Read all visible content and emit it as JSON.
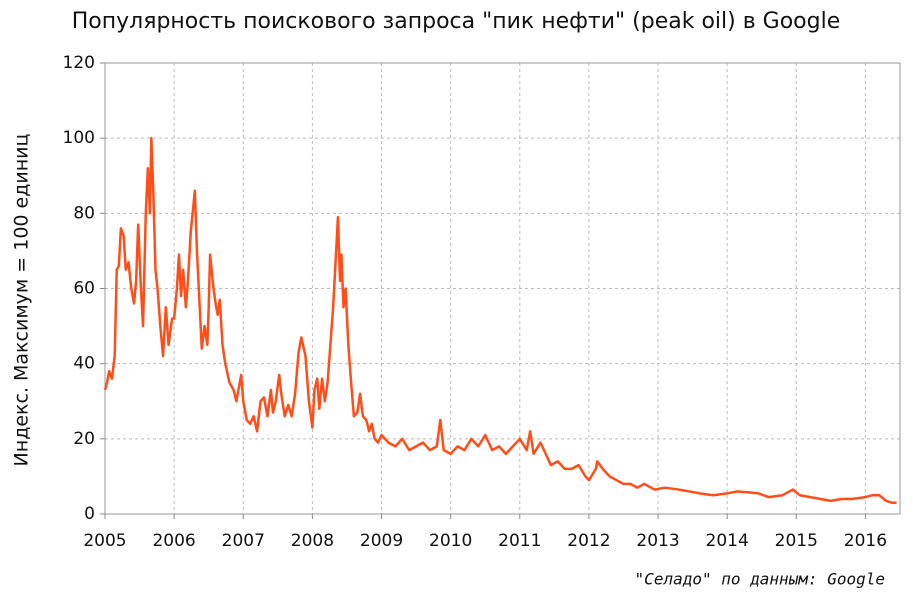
{
  "chart_data": {
    "type": "line",
    "title": "Популярность поискового запроса \"пик нефти\" (peak oil) в Google",
    "y_label": "Индекс. Максимум = 100 единиц",
    "source": "\"Селадо\" по данным: Google",
    "xlim": [
      2005,
      2016.5
    ],
    "xticks": [
      2005,
      2006,
      2007,
      2008,
      2009,
      2010,
      2011,
      2012,
      2013,
      2014,
      2015,
      2016
    ],
    "ylim": [
      0,
      120
    ],
    "yticks": [
      0,
      20,
      40,
      60,
      80,
      100,
      120
    ],
    "grid": true,
    "color": "#ff4e1a",
    "x": [
      2005.0,
      2005.03,
      2005.06,
      2005.1,
      2005.14,
      2005.17,
      2005.2,
      2005.23,
      2005.27,
      2005.3,
      2005.34,
      2005.38,
      2005.42,
      2005.45,
      2005.48,
      2005.52,
      2005.55,
      2005.59,
      2005.62,
      2005.65,
      2005.67,
      2005.7,
      2005.73,
      2005.76,
      2005.8,
      2005.84,
      2005.88,
      2005.92,
      2005.97,
      2006.0,
      2006.04,
      2006.07,
      2006.1,
      2006.13,
      2006.17,
      2006.2,
      2006.24,
      2006.3,
      2006.33,
      2006.37,
      2006.4,
      2006.44,
      2006.48,
      2006.5,
      2006.52,
      2006.57,
      2006.6,
      2006.63,
      2006.66,
      2006.7,
      2006.74,
      2006.8,
      2006.86,
      2006.9,
      2006.97,
      2007.0,
      2007.05,
      2007.1,
      2007.15,
      2007.2,
      2007.25,
      2007.3,
      2007.35,
      2007.4,
      2007.43,
      2007.47,
      2007.52,
      2007.55,
      2007.6,
      2007.65,
      2007.7,
      2007.75,
      2007.8,
      2007.84,
      2007.9,
      2007.95,
      2008.0,
      2008.03,
      2008.07,
      2008.1,
      2008.14,
      2008.18,
      2008.22,
      2008.26,
      2008.3,
      2008.37,
      2008.4,
      2008.42,
      2008.45,
      2008.48,
      2008.52,
      2008.56,
      2008.6,
      2008.65,
      2008.69,
      2008.73,
      2008.78,
      2008.82,
      2008.86,
      2008.9,
      2008.95,
      2009.0,
      2009.1,
      2009.2,
      2009.3,
      2009.4,
      2009.5,
      2009.6,
      2009.7,
      2009.8,
      2009.85,
      2009.9,
      2010.0,
      2010.1,
      2010.2,
      2010.3,
      2010.4,
      2010.5,
      2010.6,
      2010.7,
      2010.8,
      2010.9,
      2011.0,
      2011.1,
      2011.15,
      2011.2,
      2011.3,
      2011.4,
      2011.45,
      2011.55,
      2011.65,
      2011.75,
      2011.85,
      2011.95,
      2012.0,
      2012.1,
      2012.12,
      2012.2,
      2012.3,
      2012.4,
      2012.5,
      2012.6,
      2012.7,
      2012.8,
      2012.9,
      2012.95,
      2013.1,
      2013.3,
      2013.45,
      2013.6,
      2013.8,
      2014.0,
      2014.15,
      2014.3,
      2014.45,
      2014.6,
      2014.8,
      2014.95,
      2015.05,
      2015.2,
      2015.35,
      2015.5,
      2015.65,
      2015.8,
      2016.0,
      2016.1,
      2016.2,
      2016.3,
      2016.38,
      2016.45
    ],
    "values": [
      33,
      35,
      38,
      36,
      42,
      65,
      66,
      76,
      74,
      65,
      67,
      60,
      56,
      62,
      77,
      60,
      50,
      80,
      92,
      80,
      100,
      85,
      65,
      60,
      50,
      42,
      55,
      45,
      52,
      52,
      60,
      69,
      58,
      65,
      55,
      62,
      75,
      86,
      70,
      55,
      44,
      50,
      45,
      55,
      69,
      60,
      56,
      53,
      57,
      45,
      40,
      35,
      33,
      30,
      37,
      30,
      25,
      24,
      26,
      22,
      30,
      31,
      26,
      33,
      27,
      30,
      37,
      32,
      26,
      29,
      26,
      32,
      43,
      47,
      42,
      30,
      23,
      33,
      36,
      28,
      36,
      30,
      35,
      45,
      55,
      79,
      62,
      69,
      55,
      60,
      45,
      35,
      26,
      27,
      32,
      26,
      25,
      22,
      24,
      20,
      19,
      21,
      19,
      18,
      20,
      17,
      18,
      19,
      17,
      18,
      25,
      17,
      16,
      18,
      17,
      20,
      18,
      21,
      17,
      18,
      16,
      18,
      20,
      17,
      22,
      16,
      19,
      15,
      13,
      14,
      12,
      12,
      13,
      10,
      9,
      12,
      14,
      12,
      10,
      9,
      8,
      8,
      7,
      8,
      7,
      6.5,
      7,
      6.5,
      6,
      5.5,
      5,
      5.5,
      6,
      5.8,
      5.5,
      4.5,
      5,
      6.5,
      5,
      4.5,
      4,
      3.5,
      4,
      4,
      4.5,
      5,
      5,
      3.5,
      3,
      3
    ]
  }
}
